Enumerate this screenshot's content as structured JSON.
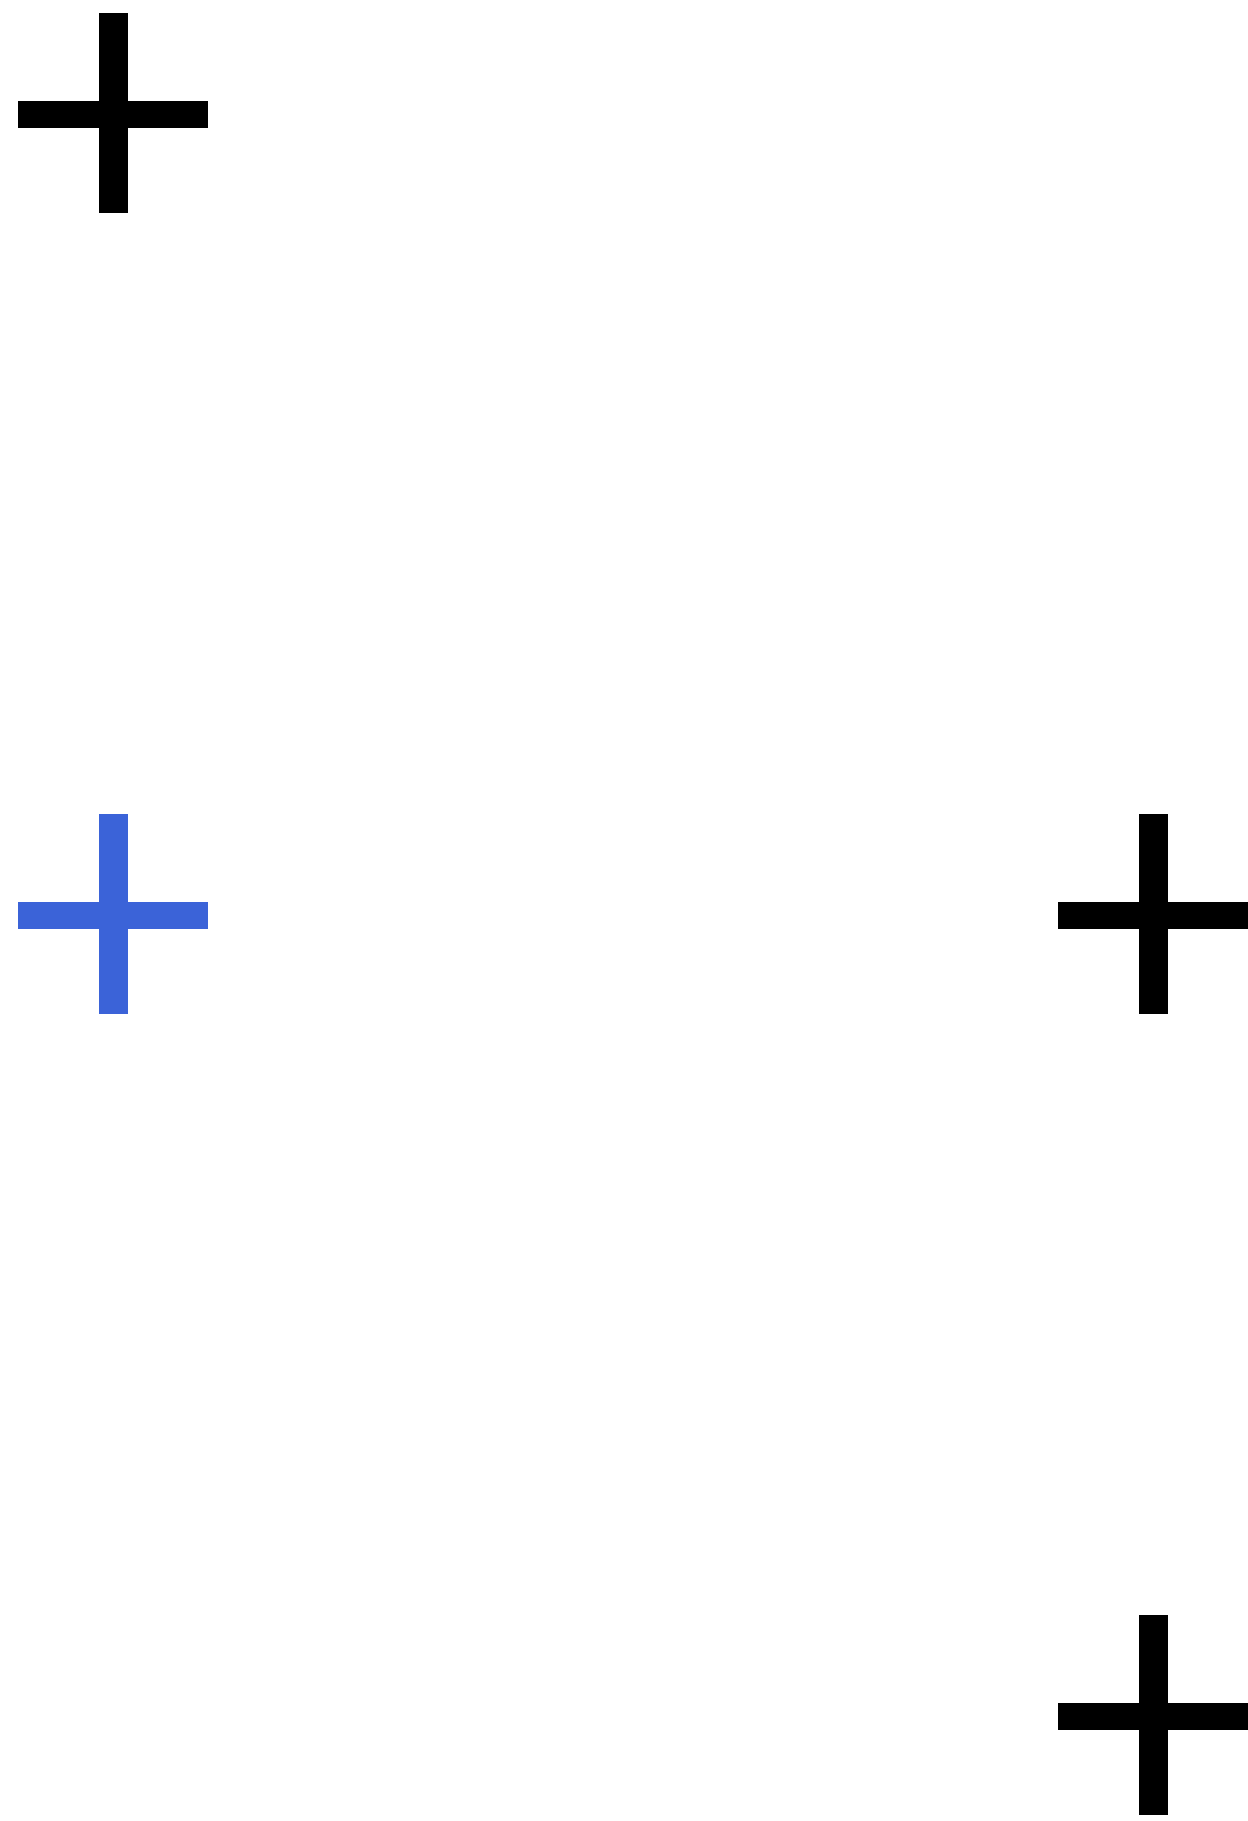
{
  "markers": [
    {
      "id": "cross-1",
      "icon": "plus-icon",
      "color": "#000000"
    },
    {
      "id": "cross-2",
      "icon": "plus-icon",
      "color": "#3b63d8"
    },
    {
      "id": "cross-3",
      "icon": "plus-icon",
      "color": "#000000"
    },
    {
      "id": "cross-4",
      "icon": "plus-icon",
      "color": "#000000"
    }
  ]
}
